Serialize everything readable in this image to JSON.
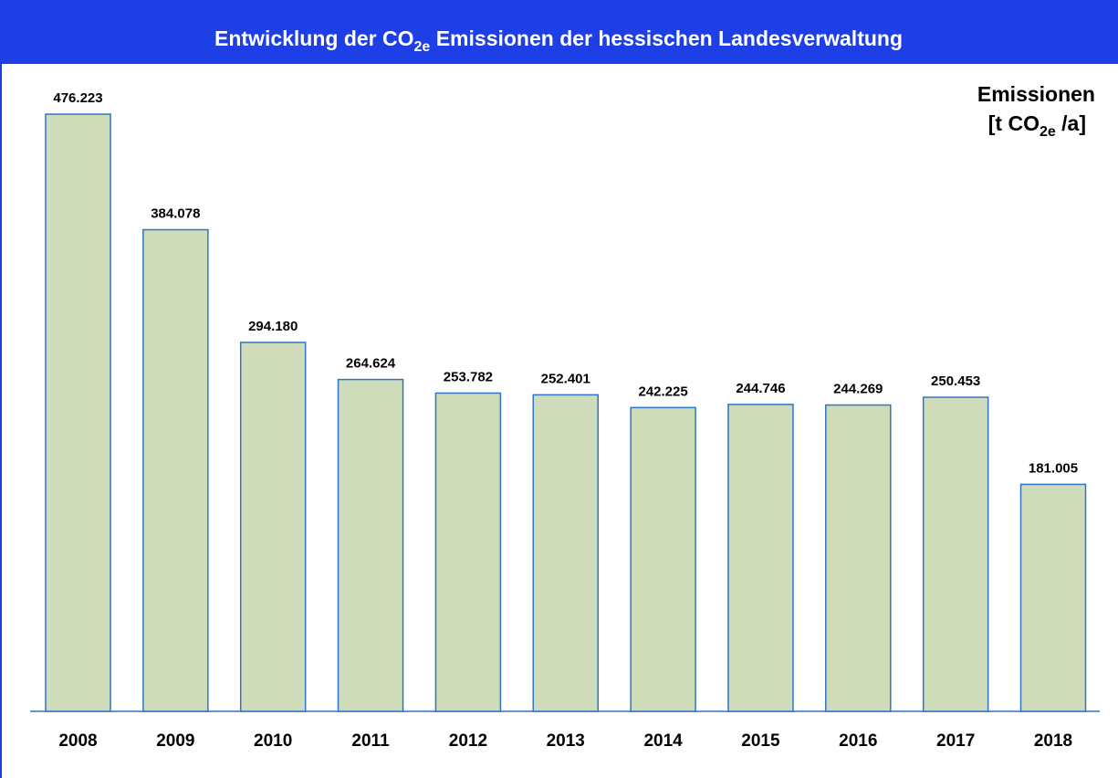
{
  "chart_data": {
    "type": "bar",
    "title_parts": [
      "Entwicklung der CO",
      "2e",
      " Emissionen der hessischen Landesverwaltung"
    ],
    "y_label_parts": [
      "Emissionen",
      "[t CO",
      "2e",
      " /a]"
    ],
    "categories": [
      "2008",
      "2009",
      "2010",
      "2011",
      "2012",
      "2013",
      "2014",
      "2015",
      "2016",
      "2017",
      "2018"
    ],
    "values": [
      476223,
      384078,
      294180,
      264624,
      253782,
      252401,
      242225,
      244746,
      244269,
      250453,
      181005
    ],
    "value_labels": [
      "476.223",
      "384.078",
      "294.180",
      "264.624",
      "253.782",
      "252.401",
      "242.225",
      "244.746",
      "244.269",
      "250.453",
      "181.005"
    ],
    "color": "#cfdcb9",
    "edge_color": "#2e75c6"
  }
}
